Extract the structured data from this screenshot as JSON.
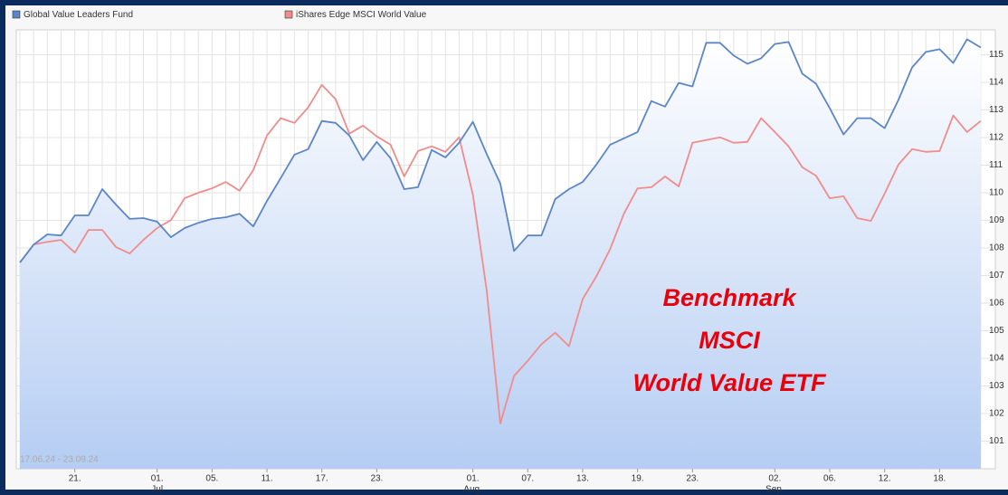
{
  "chart_data": {
    "type": "line",
    "categories": [
      null,
      null,
      null,
      null,
      "21.",
      null,
      null,
      null,
      null,
      null,
      "01.",
      null,
      null,
      null,
      "05.",
      null,
      null,
      null,
      "11.",
      null,
      null,
      null,
      "17.",
      null,
      null,
      null,
      "23.",
      null,
      null,
      null,
      null,
      null,
      null,
      "01.",
      null,
      null,
      null,
      "07.",
      null,
      null,
      null,
      "13.",
      null,
      null,
      null,
      "19.",
      null,
      null,
      null,
      "23.",
      null,
      null,
      null,
      null,
      null,
      "02.",
      null,
      null,
      null,
      "06.",
      null,
      null,
      null,
      "12.",
      null,
      null,
      null,
      "18.",
      null,
      null,
      null
    ],
    "months": [
      null,
      null,
      null,
      null,
      null,
      null,
      null,
      null,
      null,
      null,
      "Jul",
      null,
      null,
      null,
      null,
      null,
      null,
      null,
      null,
      null,
      null,
      null,
      null,
      null,
      null,
      null,
      null,
      null,
      null,
      null,
      null,
      null,
      null,
      "Aug.",
      null,
      null,
      null,
      null,
      null,
      null,
      null,
      null,
      null,
      null,
      null,
      null,
      null,
      null,
      null,
      null,
      null,
      null,
      null,
      null,
      null,
      "Sep.",
      null,
      null,
      null,
      null,
      null,
      null,
      null,
      null,
      null,
      null,
      null,
      null,
      null,
      null,
      null
    ],
    "series": [
      {
        "name": "Global Value Leaders Fund",
        "color": "#5b86c9",
        "values": [
          107.47,
          108.12,
          108.49,
          108.45,
          109.18,
          109.18,
          110.13,
          109.57,
          109.05,
          109.08,
          108.95,
          108.39,
          108.72,
          108.91,
          109.05,
          109.11,
          109.24,
          108.78,
          109.7,
          110.53,
          111.38,
          111.58,
          112.6,
          112.53,
          112.07,
          111.18,
          111.84,
          111.25,
          110.13,
          110.2,
          111.55,
          111.28,
          111.81,
          112.57,
          111.41,
          110.33,
          107.89,
          108.45,
          108.45,
          109.77,
          110.13,
          110.39,
          111.02,
          111.74,
          111.97,
          112.2,
          113.32,
          113.12,
          113.98,
          113.85,
          115.43,
          115.43,
          114.97,
          114.67,
          114.87,
          115.39,
          115.46,
          114.31,
          113.95,
          113.06,
          112.11,
          112.7,
          112.7,
          112.34,
          113.36,
          114.54,
          115.1,
          115.2,
          114.7,
          115.56,
          115.26
        ]
      },
      {
        "name": "iShares Edge MSCI World Value",
        "color": "#f08c8c",
        "values": [
          107.47,
          108.12,
          108.22,
          108.29,
          107.83,
          108.65,
          108.65,
          108.03,
          107.8,
          108.29,
          108.72,
          109.01,
          109.8,
          110.0,
          110.16,
          110.39,
          110.07,
          110.82,
          112.07,
          112.7,
          112.53,
          113.09,
          113.91,
          113.39,
          112.14,
          112.43,
          112.04,
          111.74,
          110.59,
          111.51,
          111.68,
          111.48,
          112.01,
          109.93,
          106.48,
          101.64,
          103.36,
          103.91,
          104.51,
          104.93,
          104.44,
          106.15,
          106.97,
          107.96,
          109.24,
          110.16,
          110.2,
          110.59,
          110.23,
          111.81,
          111.91,
          112.01,
          111.81,
          111.84,
          112.7,
          112.2,
          111.68,
          110.92,
          110.62,
          109.8,
          109.87,
          109.08,
          108.98,
          109.97,
          111.02,
          111.58,
          111.48,
          111.51,
          112.8,
          112.2,
          112.6
        ]
      }
    ],
    "ylim": [
      100,
      115.9
    ],
    "yticks": [
      101,
      102,
      103,
      104,
      105,
      106,
      107,
      108,
      109,
      110,
      111,
      112,
      113,
      114,
      115
    ],
    "grid": true,
    "area_fill": true,
    "date_range": "17.06.24 - 23.09.24",
    "annotation": [
      "Benchmark",
      "MSCI",
      "World Value ETF"
    ],
    "annotation_color": "#e8000b"
  }
}
